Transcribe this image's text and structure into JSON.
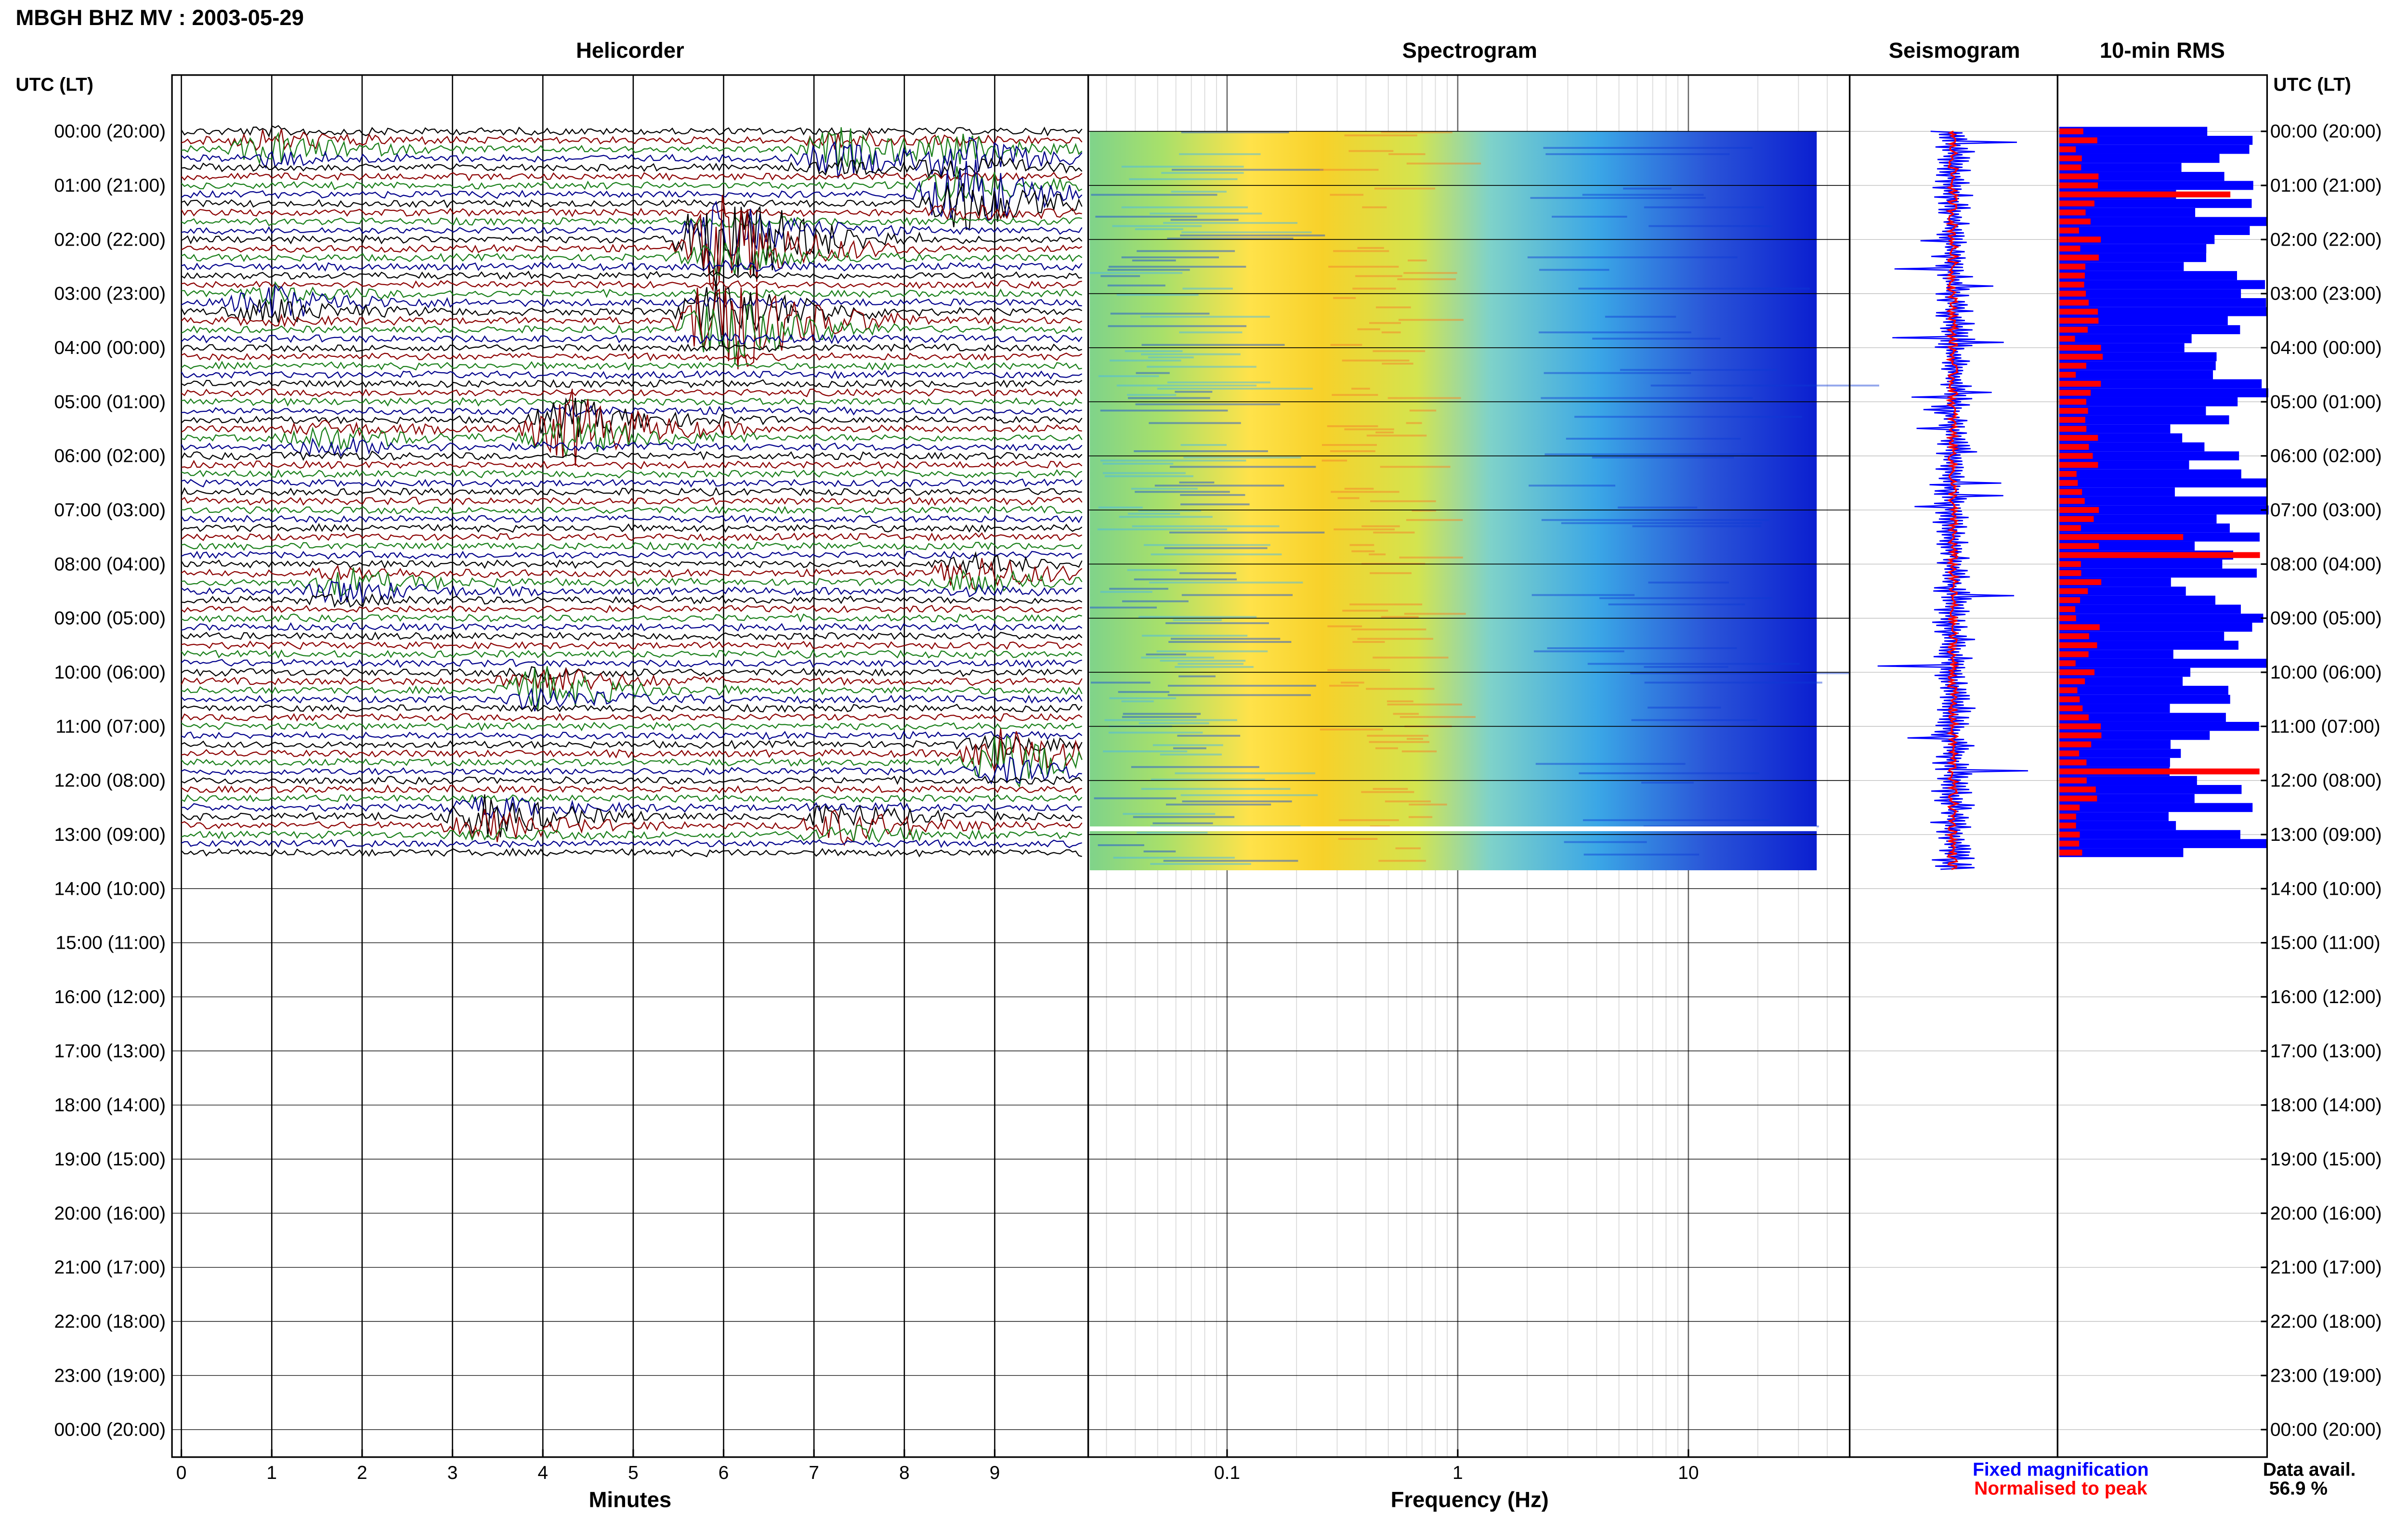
{
  "header": {
    "title": "MBGH BHZ MV : 2003-05-29",
    "axis_label": "UTC (LT)"
  },
  "panels": {
    "helicorder": "Helicorder",
    "spectrogram": "Spectrogram",
    "seismogram": "Seismogram",
    "rms": "10-min RMS"
  },
  "legend": {
    "fixed": "Fixed magnification",
    "normalised": "Normalised to peak",
    "data_avail_label": "Data avail.",
    "data_avail_value": "56.9 %"
  },
  "colors": {
    "trace_black": "#000000",
    "trace_red": "#8b0000",
    "trace_green": "#1a7f1a",
    "trace_blue": "#00008b",
    "fixed": "#0000ff",
    "normalised": "#ff0000"
  },
  "chart_data": [
    {
      "type": "line",
      "title": "Helicorder",
      "xlabel": "Minutes",
      "x_ticks": [
        "0",
        "1",
        "2",
        "3",
        "4",
        "5",
        "6",
        "7",
        "8",
        "9"
      ],
      "xlim": [
        0,
        10
      ],
      "y_ticks": [
        "00:00 (20:00)",
        "01:00 (21:00)",
        "02:00 (22:00)",
        "03:00 (23:00)",
        "04:00 (00:00)",
        "05:00 (01:00)",
        "06:00 (02:00)",
        "07:00 (03:00)",
        "08:00 (04:00)",
        "09:00 (05:00)",
        "10:00 (06:00)",
        "11:00 (07:00)",
        "12:00 (08:00)",
        "13:00 (09:00)",
        "14:00 (10:00)",
        "15:00 (11:00)",
        "16:00 (12:00)",
        "17:00 (13:00)",
        "18:00 (14:00)",
        "19:00 (15:00)",
        "20:00 (16:00)",
        "21:00 (17:00)",
        "22:00 (18:00)",
        "23:00 (19:00)",
        "00:00 (20:00)"
      ],
      "data_hours": 13.66,
      "trace_colors": [
        "black",
        "red",
        "green",
        "blue"
      ],
      "events": [
        {
          "hour": 0.3,
          "minute": 1.0,
          "color": "green",
          "amp": 0.6
        },
        {
          "hour": 0.4,
          "minute": 7.3,
          "color": "red",
          "amp": 0.9
        },
        {
          "hour": 0.5,
          "minute": 8.6,
          "color": "red",
          "amp": 0.7
        },
        {
          "hour": 1.2,
          "minute": 8.6,
          "color": "blue",
          "amp": 1.6
        },
        {
          "hour": 2.0,
          "minute": 6.0,
          "color": "black",
          "amp": 2.0
        },
        {
          "hour": 2.2,
          "minute": 6.0,
          "color": "green",
          "amp": 0.9
        },
        {
          "hour": 3.2,
          "minute": 1.0,
          "color": "black",
          "amp": 0.7
        },
        {
          "hour": 3.5,
          "minute": 6.0,
          "color": "black",
          "amp": 2.4
        },
        {
          "hour": 5.5,
          "minute": 4.3,
          "color": "blue",
          "amp": 1.4
        },
        {
          "hour": 5.7,
          "minute": 1.6,
          "color": "green",
          "amp": 0.5
        },
        {
          "hour": 8.4,
          "minute": 1.8,
          "color": "black",
          "amp": 0.6
        },
        {
          "hour": 8.2,
          "minute": 8.8,
          "color": "green",
          "amp": 0.7
        },
        {
          "hour": 10.3,
          "minute": 4.0,
          "color": "black",
          "amp": 0.9
        },
        {
          "hour": 11.6,
          "minute": 9.1,
          "color": "red",
          "amp": 1.3
        },
        {
          "hour": 12.7,
          "minute": 3.4,
          "color": "blue",
          "amp": 0.9
        },
        {
          "hour": 12.8,
          "minute": 7.3,
          "color": "red",
          "amp": 0.7
        }
      ]
    },
    {
      "type": "heatmap",
      "title": "Spectrogram",
      "xlabel": "Frequency (Hz)",
      "x_scale": "log",
      "xlim": [
        0.025,
        50
      ],
      "x_ticks": [
        "0.1",
        "1",
        "10"
      ],
      "data_hours": 13.66,
      "colormap": "jet"
    },
    {
      "type": "line",
      "title": "Seismogram",
      "data_hours": 13.66,
      "series": [
        {
          "name": "Fixed magnification",
          "color": "blue"
        },
        {
          "name": "Normalised to peak",
          "color": "red"
        }
      ]
    },
    {
      "type": "bar",
      "title": "10-min RMS",
      "data_hours": 13.66,
      "series": [
        {
          "name": "Fixed magnification",
          "color": "blue"
        },
        {
          "name": "Normalised to peak",
          "color": "red"
        }
      ]
    }
  ]
}
